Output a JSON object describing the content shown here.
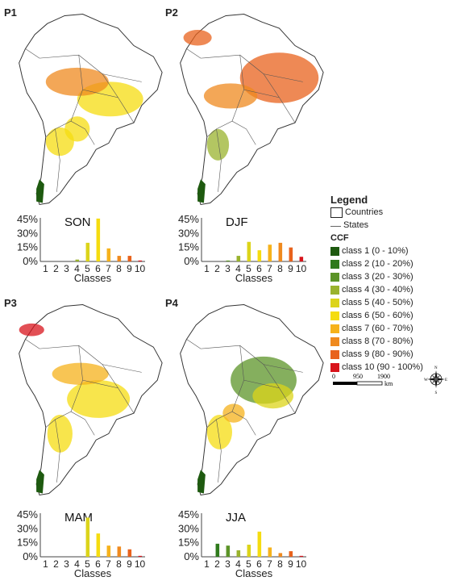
{
  "panels": [
    {
      "id": "P1",
      "season": "SON",
      "values": [
        0,
        0,
        0,
        2,
        20,
        46,
        14,
        6,
        6,
        1
      ]
    },
    {
      "id": "P2",
      "season": "DJF",
      "values": [
        0,
        0,
        1,
        6,
        21,
        12,
        18,
        20,
        15,
        5
      ]
    },
    {
      "id": "P3",
      "season": "MAM",
      "values": [
        0,
        0,
        0,
        0,
        42,
        25,
        12,
        11,
        8,
        1
      ]
    },
    {
      "id": "P4",
      "season": "JJA",
      "values": [
        0,
        14,
        12,
        7,
        13,
        27,
        10,
        4,
        6,
        1
      ]
    }
  ],
  "chart_data": [
    {
      "type": "bar",
      "title": "SON",
      "categories": [
        "1",
        "2",
        "3",
        "4",
        "5",
        "6",
        "7",
        "8",
        "9",
        "10"
      ],
      "values": [
        0,
        0,
        0,
        2,
        20,
        46,
        14,
        6,
        6,
        1
      ],
      "xlabel": "Classes",
      "ylabel": "",
      "ylim": [
        0,
        45
      ],
      "yticks": [
        "0%",
        "15%",
        "30%",
        "45%"
      ]
    },
    {
      "type": "bar",
      "title": "DJF",
      "categories": [
        "1",
        "2",
        "3",
        "4",
        "5",
        "6",
        "7",
        "8",
        "9",
        "10"
      ],
      "values": [
        0,
        0,
        1,
        6,
        21,
        12,
        18,
        20,
        15,
        5
      ],
      "xlabel": "Classes",
      "ylabel": "",
      "ylim": [
        0,
        45
      ],
      "yticks": [
        "0%",
        "15%",
        "30%",
        "45%"
      ]
    },
    {
      "type": "bar",
      "title": "MAM",
      "categories": [
        "1",
        "2",
        "3",
        "4",
        "5",
        "6",
        "7",
        "8",
        "9",
        "10"
      ],
      "values": [
        0,
        0,
        0,
        0,
        42,
        25,
        12,
        11,
        8,
        1
      ],
      "xlabel": "Classes",
      "ylabel": "",
      "ylim": [
        0,
        45
      ],
      "yticks": [
        "0%",
        "15%",
        "30%",
        "45%"
      ]
    },
    {
      "type": "bar",
      "title": "JJA",
      "categories": [
        "1",
        "2",
        "3",
        "4",
        "5",
        "6",
        "7",
        "8",
        "9",
        "10"
      ],
      "values": [
        0,
        14,
        12,
        7,
        13,
        27,
        10,
        4,
        6,
        1
      ],
      "xlabel": "Classes",
      "ylabel": "",
      "ylim": [
        0,
        45
      ],
      "yticks": [
        "0%",
        "15%",
        "30%",
        "45%"
      ]
    }
  ],
  "chart": {
    "xlabel": "Classes",
    "categories": [
      "1",
      "2",
      "3",
      "4",
      "5",
      "6",
      "7",
      "8",
      "9",
      "10"
    ],
    "yticks": [
      "0%",
      "15%",
      "30%",
      "45%"
    ],
    "ylim": [
      0,
      45
    ]
  },
  "legend": {
    "title": "Legend",
    "countries": "Countries",
    "states": "States",
    "ccf": "CCF",
    "classes": [
      {
        "label": "class 1 (0 - 10%)",
        "color": "#1e5a10"
      },
      {
        "label": "class 2 (10 - 20%)",
        "color": "#2f7a1c"
      },
      {
        "label": "class 3 (20 - 30%)",
        "color": "#5c9428"
      },
      {
        "label": "class 4 (30 - 40%)",
        "color": "#9ab32e"
      },
      {
        "label": "class 5 (40 - 50%)",
        "color": "#dcd41a"
      },
      {
        "label": "class 6 (50 - 60%)",
        "color": "#f5dc10"
      },
      {
        "label": "class 7 (60 - 70%)",
        "color": "#f6b21b"
      },
      {
        "label": "class 8 (70 - 80%)",
        "color": "#ef8a1f"
      },
      {
        "label": "class 9 (80 - 90%)",
        "color": "#e8621c"
      },
      {
        "label": "class 10 (90 - 100%)",
        "color": "#d8141c"
      }
    ]
  },
  "scalebar": {
    "ticks": [
      "0",
      "950",
      "1900"
    ],
    "unit": "km"
  },
  "compass": {
    "n": "N",
    "s": "S",
    "e": "E",
    "w": "W"
  }
}
